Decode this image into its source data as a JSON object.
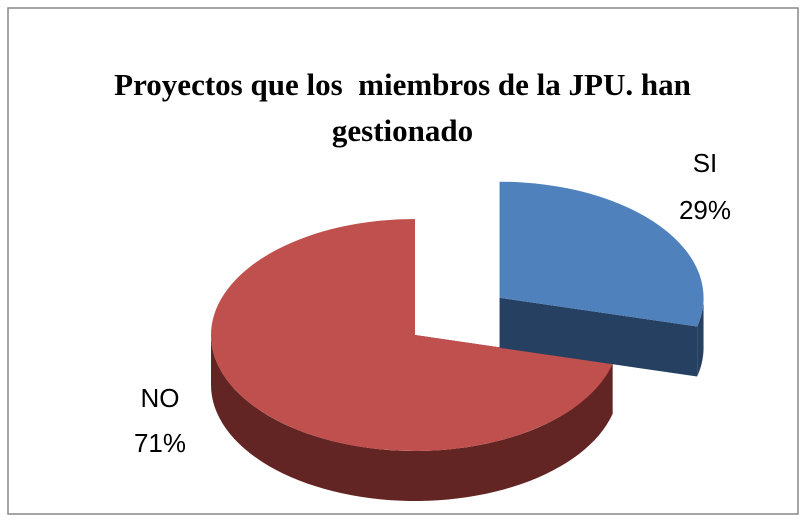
{
  "chart_data": {
    "type": "pie",
    "title": "Proyectos que los  miembros de la JPU. han gestionado",
    "categories": [
      "SI",
      "NO"
    ],
    "values": [
      29,
      71
    ],
    "value_labels": [
      "29%",
      "71%"
    ],
    "colors": [
      "#4f81bd",
      "#c0504d"
    ],
    "side_colors": [
      "#254061",
      "#632523"
    ]
  }
}
